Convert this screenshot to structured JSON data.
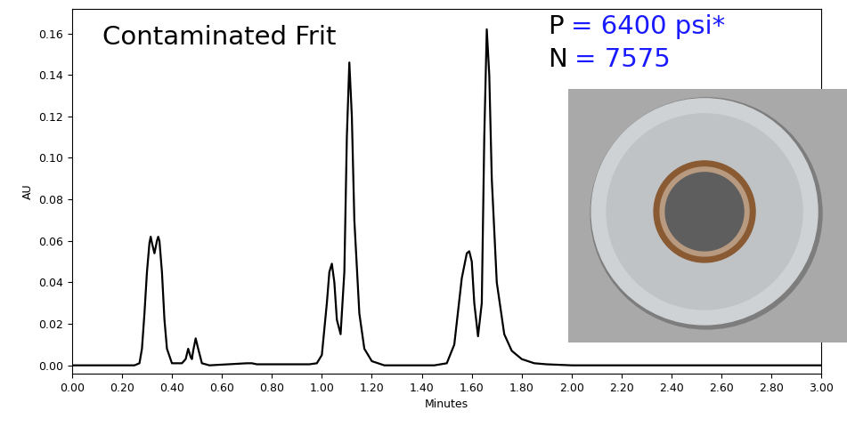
{
  "chart_data": {
    "type": "line",
    "title": "Contaminated Frit",
    "annotations": [
      [
        {
          "text": "P",
          "color": "#000000"
        },
        {
          "text": "= 6400 psi*",
          "color": "#1a1aff"
        }
      ],
      [
        {
          "text": "N",
          "color": "#000000"
        },
        {
          "text": "= 7575",
          "color": "#1a1aff"
        }
      ]
    ],
    "x_label": "Minutes",
    "y_label": "AU",
    "color": "#000000",
    "x": [
      0.0,
      0.25,
      0.27,
      0.28,
      0.29,
      0.3,
      0.31,
      0.315,
      0.32,
      0.33,
      0.34,
      0.345,
      0.35,
      0.36,
      0.37,
      0.38,
      0.4,
      0.44,
      0.455,
      0.465,
      0.475,
      0.48,
      0.485,
      0.495,
      0.505,
      0.52,
      0.55,
      0.7,
      0.72,
      0.74,
      0.95,
      0.98,
      1.0,
      1.02,
      1.03,
      1.04,
      1.05,
      1.06,
      1.075,
      1.09,
      1.1,
      1.11,
      1.12,
      1.13,
      1.15,
      1.17,
      1.2,
      1.25,
      1.45,
      1.5,
      1.53,
      1.56,
      1.58,
      1.59,
      1.6,
      1.61,
      1.625,
      1.64,
      1.65,
      1.66,
      1.67,
      1.68,
      1.7,
      1.73,
      1.76,
      1.8,
      1.85,
      1.9,
      2.0,
      3.0
    ],
    "values": [
      0,
      0,
      0.001,
      0.008,
      0.025,
      0.045,
      0.059,
      0.062,
      0.059,
      0.054,
      0.06,
      0.062,
      0.06,
      0.045,
      0.022,
      0.008,
      0.001,
      0.001,
      0.003,
      0.008,
      0.004,
      0.003,
      0.007,
      0.013,
      0.008,
      0.001,
      0,
      0.001,
      0.001,
      0.0005,
      0.0005,
      0.001,
      0.005,
      0.03,
      0.045,
      0.049,
      0.04,
      0.022,
      0.015,
      0.045,
      0.11,
      0.146,
      0.12,
      0.07,
      0.025,
      0.008,
      0.002,
      0,
      0,
      0.001,
      0.01,
      0.042,
      0.054,
      0.055,
      0.05,
      0.03,
      0.014,
      0.03,
      0.11,
      0.162,
      0.14,
      0.09,
      0.04,
      0.015,
      0.007,
      0.003,
      0.001,
      0.0005,
      0,
      0
    ],
    "xlim": [
      0,
      3.0
    ],
    "ylim": [
      -0.004,
      0.172
    ],
    "xticks": [
      {
        "value": 0,
        "label": "0.00"
      },
      {
        "value": 0.2,
        "label": "0.20"
      },
      {
        "value": 0.4,
        "label": "0.40"
      },
      {
        "value": 0.6,
        "label": "0.60"
      },
      {
        "value": 0.8,
        "label": "0.80"
      },
      {
        "value": 1.0,
        "label": "1.00"
      },
      {
        "value": 1.2,
        "label": "1.20"
      },
      {
        "value": 1.4,
        "label": "1.40"
      },
      {
        "value": 1.6,
        "label": "1.60"
      },
      {
        "value": 1.8,
        "label": "1.80"
      },
      {
        "value": 2.0,
        "label": "2.00"
      },
      {
        "value": 2.2,
        "label": "2.20"
      },
      {
        "value": 2.4,
        "label": "2.40"
      },
      {
        "value": 2.6,
        "label": "2.60"
      },
      {
        "value": 2.8,
        "label": "2.80"
      },
      {
        "value": 3.0,
        "label": "3.00"
      }
    ],
    "yticks": [
      {
        "value": 0,
        "label": "0.00"
      },
      {
        "value": 0.02,
        "label": "0.02"
      },
      {
        "value": 0.04,
        "label": "0.04"
      },
      {
        "value": 0.06,
        "label": "0.06"
      },
      {
        "value": 0.08,
        "label": "0.08"
      },
      {
        "value": 0.1,
        "label": "0.10"
      },
      {
        "value": 0.12,
        "label": "0.12"
      },
      {
        "value": 0.14,
        "label": "0.14"
      },
      {
        "value": 0.16,
        "label": "0.16"
      }
    ],
    "grid": false
  }
}
